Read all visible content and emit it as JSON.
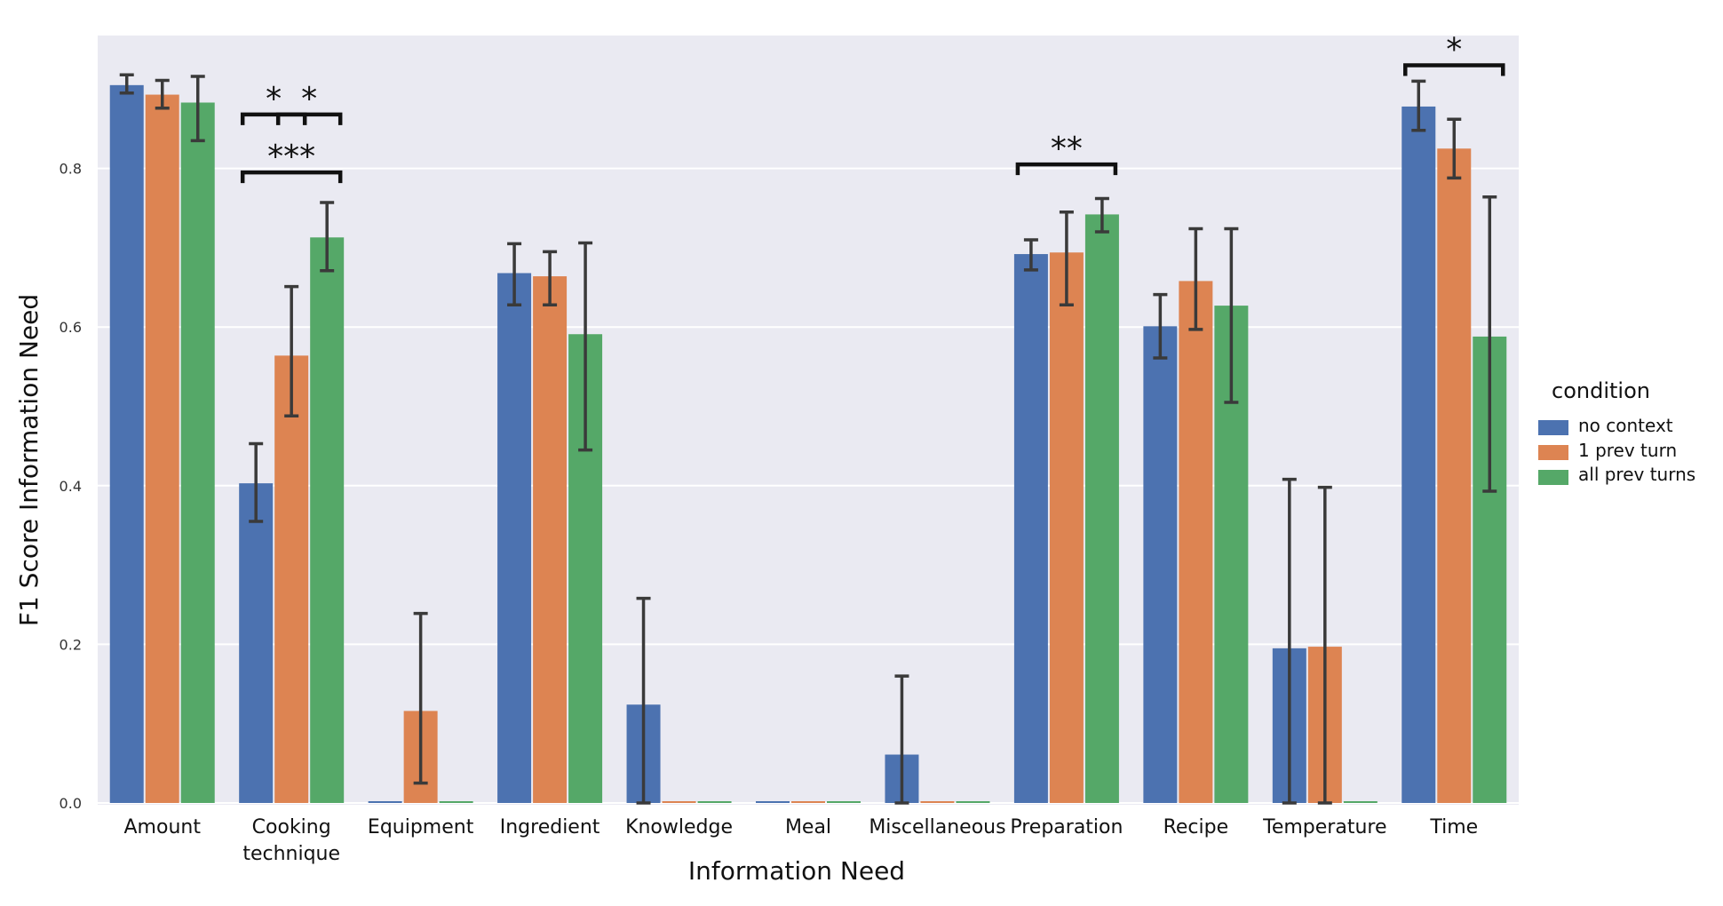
{
  "chart_data": {
    "type": "bar",
    "title": "",
    "xlabel": "Information Need",
    "ylabel": "F1 Score Information Need",
    "ylim": [
      0,
      0.95
    ],
    "yticks": [
      0.0,
      0.2,
      0.4,
      0.6,
      0.8
    ],
    "ytick_labels": [
      "0.0",
      "0.2",
      "0.4",
      "0.6",
      "0.8"
    ],
    "grid": true,
    "categories": [
      "Amount",
      "Cooking technique",
      "Equipment",
      "Ingredient",
      "Knowledge",
      "Meal",
      "Miscellaneous",
      "Preparation",
      "Recipe",
      "Temperature",
      "Time"
    ],
    "category_lines": [
      [
        "Amount"
      ],
      [
        "Cooking",
        "technique"
      ],
      [
        "Equipment"
      ],
      [
        "Ingredient"
      ],
      [
        "Knowledge"
      ],
      [
        "Meal"
      ],
      [
        "Miscellaneous"
      ],
      [
        "Preparation"
      ],
      [
        "Recipe"
      ],
      [
        "Temperature"
      ],
      [
        "Time"
      ]
    ],
    "legend": {
      "title": "condition",
      "position": "right"
    },
    "series": [
      {
        "name": "no context",
        "color": "#4c72b0",
        "values": [
          0.905,
          0.403,
          0.0,
          0.668,
          0.124,
          0.0,
          0.061,
          0.692,
          0.601,
          0.195,
          0.878
        ],
        "err_low": [
          0.895,
          0.355,
          0.0,
          0.628,
          0.0,
          0.0,
          0.0,
          0.672,
          0.561,
          0.0,
          0.848
        ],
        "err_high": [
          0.918,
          0.453,
          0.0,
          0.705,
          0.258,
          0.0,
          0.16,
          0.71,
          0.641,
          0.408,
          0.91
        ]
      },
      {
        "name": "1 prev turn",
        "color": "#dd8452",
        "values": [
          0.893,
          0.564,
          0.116,
          0.664,
          0.0,
          0.0,
          0.0,
          0.694,
          0.658,
          0.197,
          0.825
        ],
        "err_low": [
          0.876,
          0.488,
          0.025,
          0.628,
          0.0,
          0.0,
          0.0,
          0.628,
          0.597,
          0.0,
          0.788
        ],
        "err_high": [
          0.911,
          0.651,
          0.239,
          0.695,
          0.0,
          0.0,
          0.0,
          0.745,
          0.724,
          0.398,
          0.862
        ]
      },
      {
        "name": "all prev turns",
        "color": "#55a868",
        "values": [
          0.883,
          0.713,
          0.0,
          0.591,
          0.0,
          0.0,
          0.0,
          0.742,
          0.627,
          0.0,
          0.588
        ],
        "err_low": [
          0.835,
          0.671,
          0.0,
          0.445,
          0.0,
          0.0,
          0.0,
          0.72,
          0.505,
          0.0,
          0.393
        ],
        "err_high": [
          0.916,
          0.757,
          0.0,
          0.706,
          0.0,
          0.0,
          0.0,
          0.762,
          0.724,
          0.0,
          0.764
        ]
      }
    ],
    "annotations": [
      {
        "text": "*",
        "category": "Cooking technique",
        "from_series": 0,
        "to_series": 1,
        "level": 0.868
      },
      {
        "text": "*",
        "category": "Cooking technique",
        "from_series": 1,
        "to_series": 2,
        "level": 0.868
      },
      {
        "text": "***",
        "category": "Cooking technique",
        "from_series": 0,
        "to_series": 2,
        "level": 0.795
      },
      {
        "text": "**",
        "category": "Preparation",
        "from_series": 0,
        "to_series": 2,
        "level": 0.805
      },
      {
        "text": "*",
        "category": "Time",
        "from_series": 0,
        "to_series": 2,
        "level": 0.93
      }
    ]
  }
}
